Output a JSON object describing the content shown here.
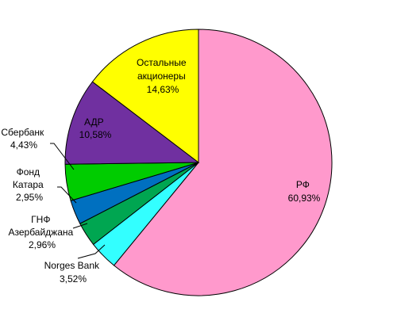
{
  "chart_data": {
    "type": "pie",
    "title": "",
    "slices": [
      {
        "name": "РФ",
        "value": 60.93,
        "value_label": "60,93%",
        "color": "#FF99CC"
      },
      {
        "name": "Norges Bank",
        "value": 3.52,
        "value_label": "3,52%",
        "color": "#33FFFF"
      },
      {
        "name": "ГНФ Азербайджана",
        "value": 2.96,
        "value_label": "2,96%",
        "color": "#00A651"
      },
      {
        "name": "Фонд Катара",
        "value": 2.95,
        "value_label": "2,95%",
        "color": "#0070C0"
      },
      {
        "name": "Сбербанк",
        "value": 4.43,
        "value_label": "4,43%",
        "color": "#00CC00"
      },
      {
        "name": "АДР",
        "value": 10.58,
        "value_label": "10,58%",
        "color": "#7030A0"
      },
      {
        "name": "Остальные акционеры",
        "value": 14.63,
        "value_label": "14,63%",
        "color": "#FFFF00"
      }
    ]
  }
}
